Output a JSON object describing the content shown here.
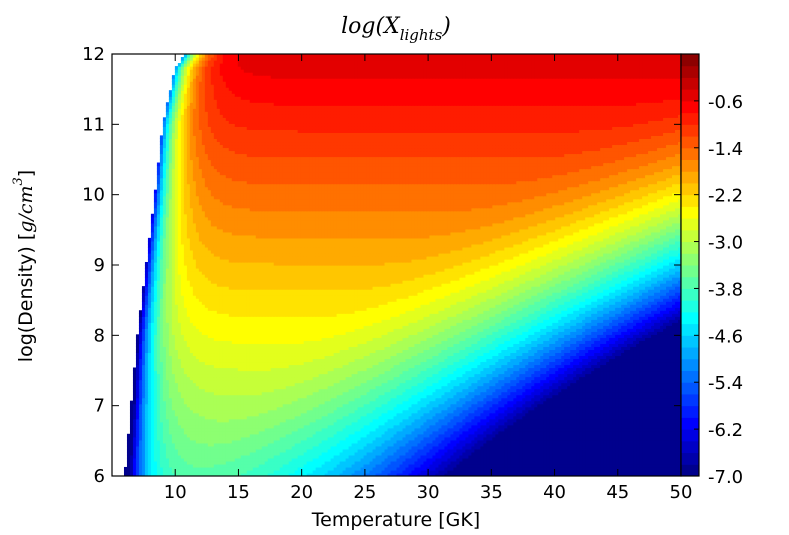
{
  "chart_data": {
    "type": "contour",
    "title_main": "log(X",
    "title_sub": "lights",
    "title_close": ")",
    "xlabel": "Temperature [GK]",
    "ylabel_text": "log(Density) [",
    "ylabel_math": "g/cm",
    "ylabel_exp": "3",
    "ylabel_close": "]",
    "xlim": [
      5,
      50
    ],
    "ylim": [
      6,
      12
    ],
    "x_ticks": [
      10,
      15,
      20,
      25,
      30,
      35,
      40,
      45,
      50
    ],
    "x_tick_labels": [
      "10",
      "15",
      "20",
      "25",
      "30",
      "35",
      "40",
      "45",
      "50"
    ],
    "y_ticks": [
      6,
      7,
      8,
      9,
      10,
      11,
      12
    ],
    "y_tick_labels": [
      "6",
      "7",
      "8",
      "9",
      "10",
      "11",
      "12"
    ],
    "colorbar": {
      "range": [
        -7.0,
        0.2
      ],
      "colormap": "jet",
      "ticks": [
        -0.6,
        -1.4,
        -2.2,
        -3.0,
        -3.8,
        -4.6,
        -5.4,
        -6.2,
        -7.0
      ],
      "tick_labels": [
        "-0.6",
        "-1.4",
        "-2.2",
        "-3.0",
        "-3.8",
        "-4.6",
        "-5.4",
        "-6.2",
        "-7.0"
      ]
    },
    "contour_levels": 36,
    "valid_region_left_boundary": [
      [
        6.0,
        6.0
      ],
      [
        7.0,
        8.0
      ],
      [
        8.4,
        10.0
      ],
      [
        9.0,
        11.0
      ],
      [
        10.0,
        11.8
      ],
      [
        10.8,
        12.0
      ]
    ],
    "color_stops": [
      "#00007f",
      "#0000ff",
      "#007fff",
      "#00ffff",
      "#7fff7f",
      "#ffff00",
      "#ff7f00",
      "#ff0000",
      "#7f0000"
    ]
  }
}
